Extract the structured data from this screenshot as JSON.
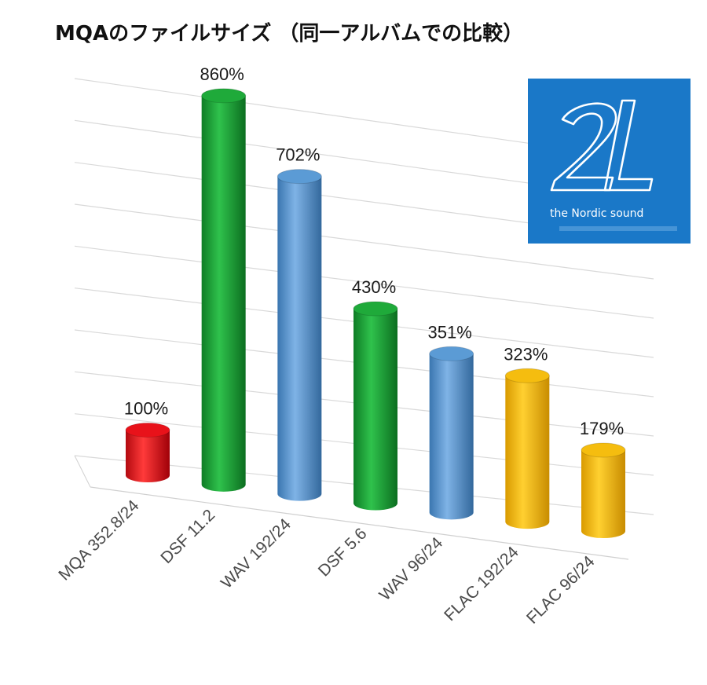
{
  "title": "MQAのファイルサイズ （同一アルバムでの比較）",
  "logo": {
    "mark": "2L",
    "tagline": "the Nordic sound",
    "bg_color": "#1a78c8"
  },
  "colors": {
    "red": "#e8121a",
    "green": "#1faa3a",
    "blue": "#5b9bd5",
    "gold": "#f5bd0f"
  },
  "chart_data": {
    "type": "bar",
    "style": "3d-cylinder",
    "categories": [
      "MQA 352.8/24",
      "DSF 11.2",
      "WAV 192/24",
      "DSF 5.6",
      "WAV 96/24",
      "FLAC 192/24",
      "FLAC 96/24"
    ],
    "values": [
      100,
      860,
      702,
      430,
      351,
      323,
      179
    ],
    "labels": [
      "100%",
      "860%",
      "702%",
      "430%",
      "351%",
      "323%",
      "179%"
    ],
    "unit": "%",
    "bar_colors": [
      "red",
      "green",
      "blue",
      "green",
      "blue",
      "gold",
      "gold"
    ],
    "ylim": [
      0,
      900
    ],
    "grid": true
  }
}
